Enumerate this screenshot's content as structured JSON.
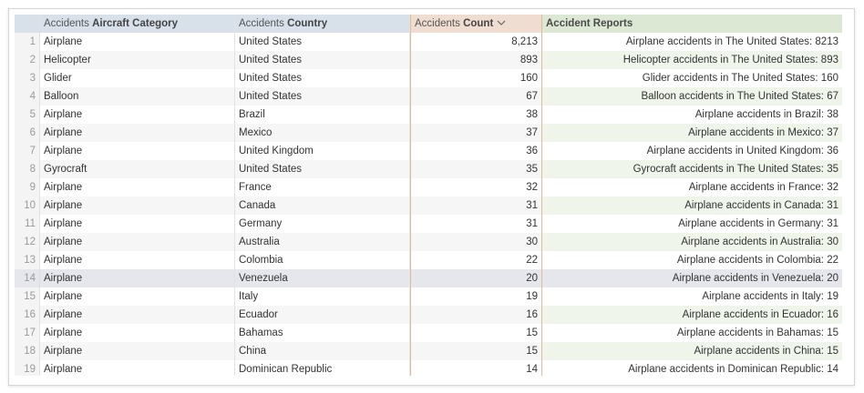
{
  "table": {
    "columns": [
      {
        "prefix": "Accidents",
        "name": "Aircraft Category"
      },
      {
        "prefix": "Accidents",
        "name": "Country"
      },
      {
        "prefix": "Accidents",
        "name": "Count"
      },
      {
        "name": "Accident Reports"
      }
    ],
    "rows": [
      [
        1,
        "Airplane",
        "United States",
        "8,213",
        "Airplane accidents in The United States: 8213"
      ],
      [
        2,
        "Helicopter",
        "United States",
        "893",
        "Helicopter accidents in The United States: 893"
      ],
      [
        3,
        "Glider",
        "United States",
        "160",
        "Glider accidents in The United States: 160"
      ],
      [
        4,
        "Balloon",
        "United States",
        "67",
        "Balloon accidents in The United States: 67"
      ],
      [
        5,
        "Airplane",
        "Brazil",
        "38",
        "Airplane accidents in Brazil: 38"
      ],
      [
        6,
        "Airplane",
        "Mexico",
        "37",
        "Airplane accidents in Mexico: 37"
      ],
      [
        7,
        "Airplane",
        "United Kingdom",
        "36",
        "Airplane accidents in United Kingdom: 36"
      ],
      [
        8,
        "Gyrocraft",
        "United States",
        "35",
        "Gyrocraft accidents in The United States: 35"
      ],
      [
        9,
        "Airplane",
        "France",
        "32",
        "Airplane accidents in France: 32"
      ],
      [
        10,
        "Airplane",
        "Canada",
        "31",
        "Airplane accidents in Canada: 31"
      ],
      [
        11,
        "Airplane",
        "Germany",
        "31",
        "Airplane accidents in Germany: 31"
      ],
      [
        12,
        "Airplane",
        "Australia",
        "30",
        "Airplane accidents in Australia: 30"
      ],
      [
        13,
        "Airplane",
        "Colombia",
        "22",
        "Airplane accidents in Colombia: 22"
      ],
      [
        14,
        "Airplane",
        "Venezuela",
        "20",
        "Airplane accidents in Venezuela: 20"
      ],
      [
        15,
        "Airplane",
        "Italy",
        "19",
        "Airplane accidents in Italy: 19"
      ],
      [
        16,
        "Airplane",
        "Ecuador",
        "16",
        "Airplane accidents in Ecuador: 16"
      ],
      [
        17,
        "Airplane",
        "Bahamas",
        "15",
        "Airplane accidents in Bahamas: 15"
      ],
      [
        18,
        "Airplane",
        "China",
        "15",
        "Airplane accidents in China: 15"
      ],
      [
        19,
        "Airplane",
        "Dominican Republic",
        "14",
        "Airplane accidents in Dominican Republic: 14"
      ]
    ]
  }
}
